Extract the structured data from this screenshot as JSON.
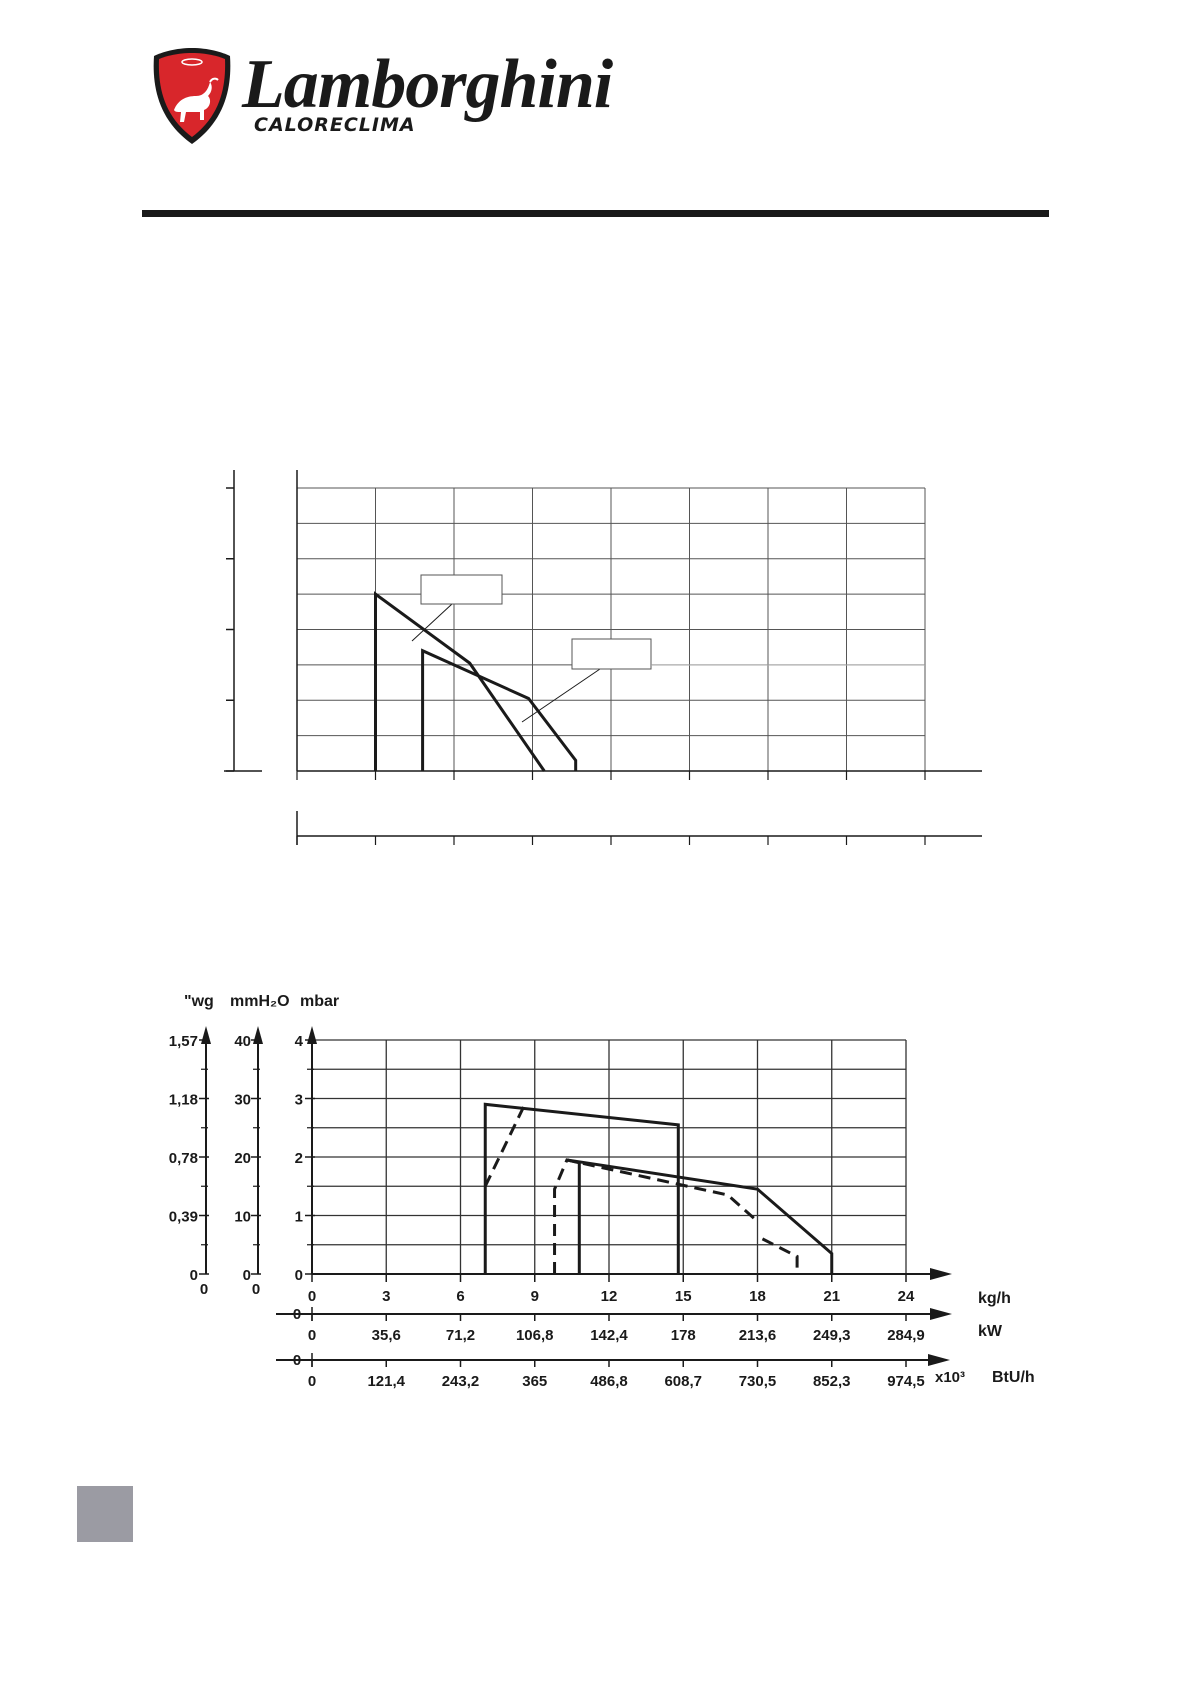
{
  "brand": {
    "name": "Lamborghini",
    "subtitle": "CALORECLIMA",
    "logo_icon": "bull-shield-icon",
    "logo_colors": {
      "shield": "#d8262b",
      "outline": "#1a1a1a"
    }
  },
  "chart_data": [
    {
      "type": "line",
      "title": "",
      "xlabel": "",
      "ylabel": "",
      "x_grid_lines": 8,
      "y_grid_lines": 8,
      "labels": [],
      "series": [
        {
          "name": "",
          "style": "solid",
          "points": [
            [
              1,
              0
            ],
            [
              1,
              5
            ],
            [
              2.2,
              3.05
            ],
            [
              3.15,
              0
            ]
          ]
        },
        {
          "name": "",
          "style": "solid",
          "points": [
            [
              1.6,
              0
            ],
            [
              1.6,
              3.4
            ],
            [
              2.95,
              2.05
            ],
            [
              3.55,
              0.3
            ],
            [
              3.55,
              0
            ]
          ]
        }
      ],
      "legend_boxes": 2,
      "grid": true
    },
    {
      "type": "line",
      "title": "",
      "xlim": [
        0,
        24
      ],
      "ylim": [
        0,
        4
      ],
      "axes": {
        "x_primary": {
          "unit": "kg/h",
          "ticks": [
            "0",
            "3",
            "6",
            "9",
            "12",
            "15",
            "18",
            "21",
            "24"
          ]
        },
        "x_secondary": {
          "unit": "kW",
          "origin": "0",
          "ticks": [
            "0",
            "35,6",
            "71,2",
            "106,8",
            "142,4",
            "178",
            "213,6",
            "249,3",
            "284,9"
          ]
        },
        "x_tertiary": {
          "unit": "BtU/h",
          "multiplier": "x10³",
          "origin": "0",
          "ticks": [
            "0",
            "121,4",
            "243,2",
            "365",
            "486,8",
            "608,7",
            "730,5",
            "852,3",
            "974,5"
          ]
        },
        "y_mbar": {
          "unit": "mbar",
          "ticks": [
            "0",
            "1",
            "2",
            "3",
            "4"
          ]
        },
        "y_mmH2O": {
          "unit": "mmH₂O",
          "ticks": [
            "0",
            "10",
            "20",
            "30",
            "40"
          ],
          "origin": "0"
        },
        "y_wg": {
          "unit": "\"wg",
          "ticks": [
            "0",
            "0,39",
            "0,78",
            "1,18",
            "1,57"
          ],
          "origin": "0"
        }
      },
      "series": [
        {
          "name": "",
          "style": "solid",
          "points": [
            [
              7,
              0
            ],
            [
              7,
              2.9
            ],
            [
              14.8,
              2.55
            ],
            [
              14.8,
              0
            ]
          ]
        },
        {
          "name": "",
          "style": "dashed",
          "points": [
            [
              7,
              1.5
            ],
            [
              8.6,
              2.9
            ]
          ]
        },
        {
          "name": "",
          "style": "solid",
          "points": [
            [
              10.8,
              0
            ],
            [
              10.8,
              1.9
            ],
            [
              10.3,
              1.95
            ],
            [
              18,
              1.45
            ],
            [
              21,
              0.35
            ],
            [
              21,
              0
            ]
          ]
        },
        {
          "name": "",
          "style": "dashed",
          "points": [
            [
              9.8,
              0
            ],
            [
              9.8,
              1.45
            ],
            [
              10.3,
              1.95
            ],
            [
              16.8,
              1.35
            ],
            [
              18,
              0.9
            ]
          ]
        },
        {
          "name": "",
          "style": "dashed",
          "points": [
            [
              18.2,
              0.6
            ],
            [
              19.6,
              0.3
            ],
            [
              19.6,
              0
            ]
          ]
        }
      ],
      "grid": true
    }
  ]
}
